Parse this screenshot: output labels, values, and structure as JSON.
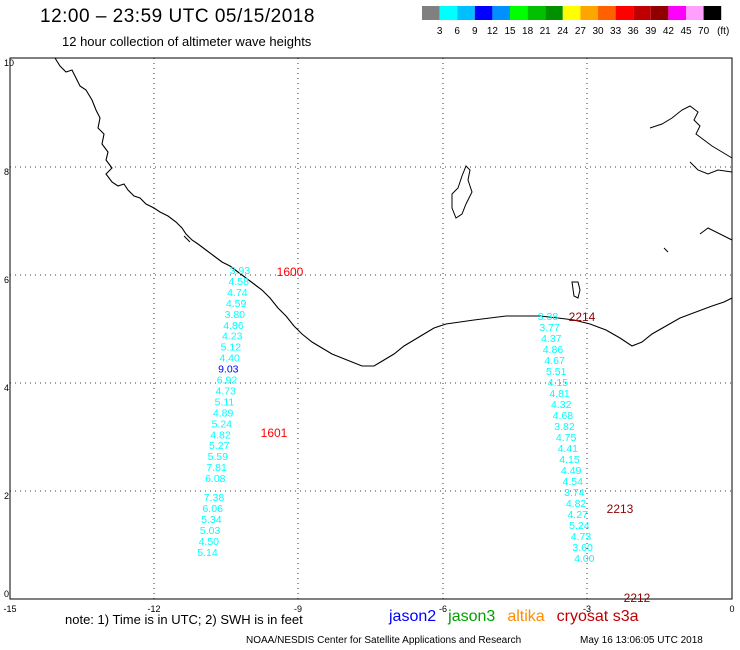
{
  "header": {
    "title": "12:00 – 23:59 UTC 05/15/2018",
    "subtitle": "12 hour collection of altimeter wave heights"
  },
  "legend": {
    "unit": "(ft)",
    "colors": [
      "#808080",
      "#00ffff",
      "#00bfff",
      "#0000ff",
      "#0090ff",
      "#00ff00",
      "#00c000",
      "#009000",
      "#ffff00",
      "#ffa500",
      "#ff6000",
      "#ff0000",
      "#c00000",
      "#900000",
      "#ff00ff",
      "#ffa0ff",
      "#000000"
    ],
    "labels": [
      "3",
      "6",
      "9",
      "12",
      "15",
      "18",
      "21",
      "24",
      "27",
      "30",
      "33",
      "36",
      "39",
      "42",
      "45",
      "70"
    ]
  },
  "axes": {
    "x_ticks": [
      "-15",
      "-12",
      "-9",
      "-6",
      "-3",
      "0"
    ],
    "y_ticks": [
      "0",
      "2",
      "4",
      "6",
      "8",
      "10"
    ]
  },
  "tracks": [
    {
      "satellite": "cryosat s3a",
      "color": "#00ffff",
      "values": [
        "3.93",
        "4.58",
        "4.74",
        "4.59",
        "3.80",
        "4.86",
        "4.23",
        "5.12",
        "4.40",
        "9.03",
        "6.92",
        "4.73",
        "5.11",
        "4.89",
        "5.24",
        "4.82",
        "5.27",
        "5.59",
        "7.81",
        "6.08",
        "7.38",
        "6.06",
        "5.34",
        "5.03",
        "4.50",
        "5.14"
      ]
    },
    {
      "satellite": "cryosat s3a",
      "color": "#00ffff",
      "values": [
        "3.38",
        "3.77",
        "4.37",
        "4.86",
        "4.67",
        "5.51",
        "4.15",
        "4.81",
        "4.32",
        "4.68",
        "3.82",
        "4.75",
        "4.41",
        "4.15",
        "4.49",
        "4.54",
        "3.74",
        "4.82",
        "4.27",
        "5.24",
        "4.73",
        "3.60",
        "4.00"
      ]
    }
  ],
  "time_labels": [
    {
      "text": "1600",
      "color": "#ff0000"
    },
    {
      "text": "1601",
      "color": "#ff0000"
    },
    {
      "text": "2214",
      "color": "#900000"
    },
    {
      "text": "2213",
      "color": "#900000"
    },
    {
      "text": "2212",
      "color": "#900000"
    }
  ],
  "footer": {
    "note": "note:  1) Time is in UTC; 2) SWH is in feet",
    "satellites": [
      {
        "name": "jason2",
        "color": "#0000ff"
      },
      {
        "name": "jason3",
        "color": "#00a000"
      },
      {
        "name": "altika",
        "color": "#ff8c00"
      },
      {
        "name": "cryosat s3a",
        "color": "#c00000"
      }
    ],
    "credit": "NOAA/NESDIS Center for Satellite Applications and Research",
    "timestamp": "May 16 13:06:05 UTC 2018"
  }
}
